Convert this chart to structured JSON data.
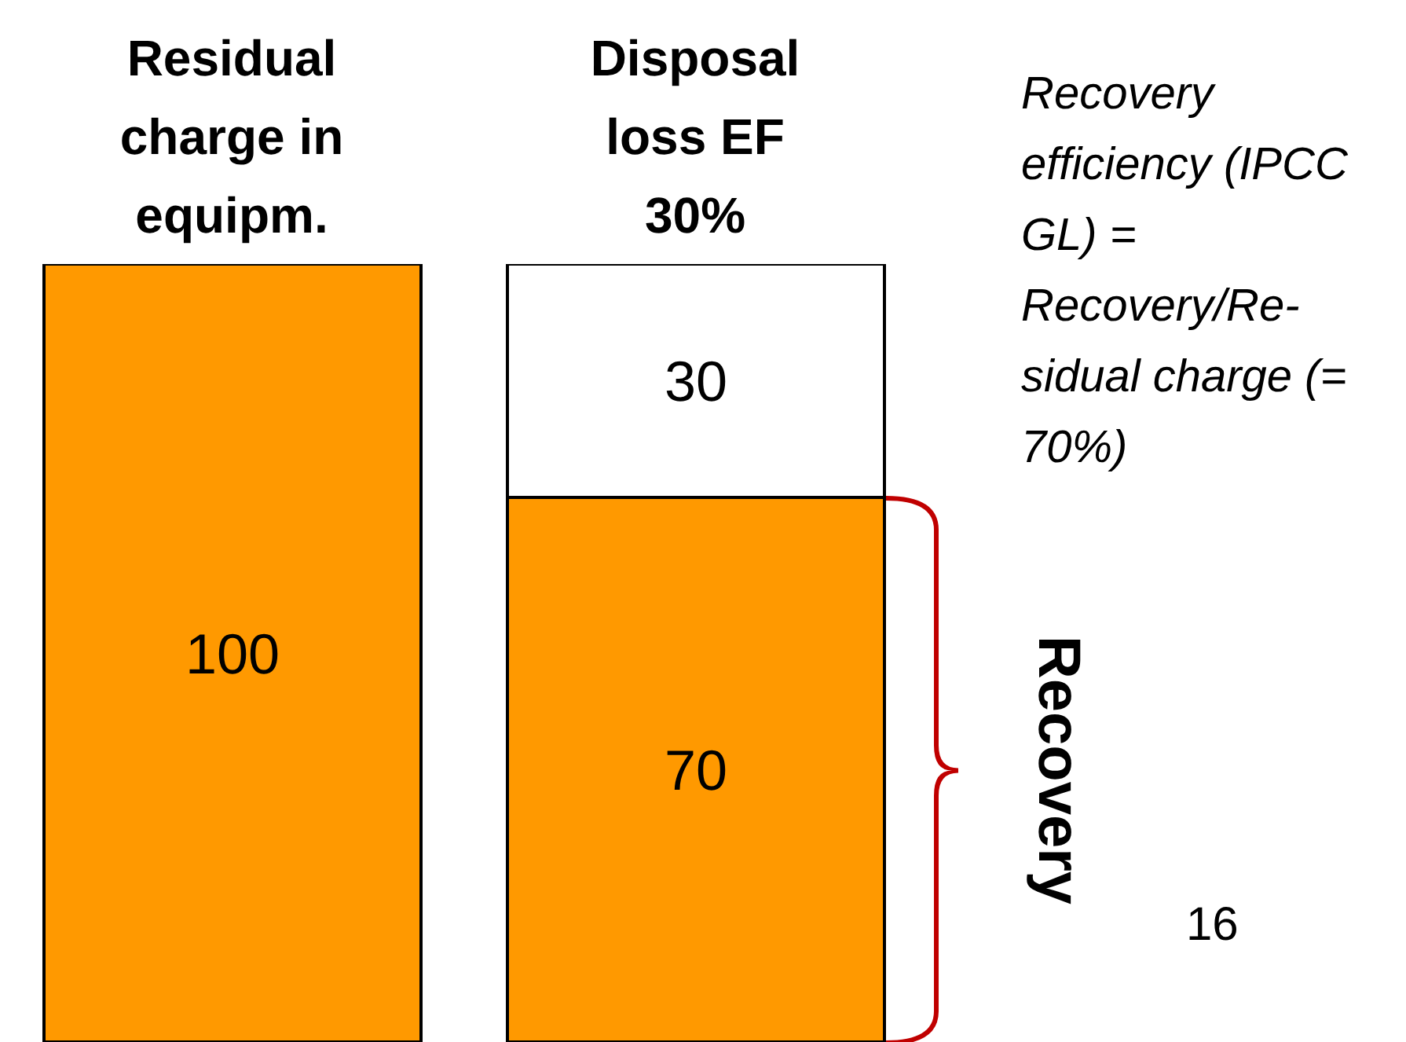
{
  "chart_data": {
    "type": "bar",
    "categories": [
      "Residual charge in equipm.",
      "Disposal loss EF 30%"
    ],
    "series": [
      {
        "color": "#ff9900",
        "values": [
          100,
          70
        ]
      },
      {
        "color": "#ffffff",
        "values": [
          null,
          30
        ]
      }
    ],
    "stacked": true,
    "data_labels": true,
    "ylim": [
      0,
      100
    ],
    "tick_labels": "x",
    "annotations": [
      "Recovery efficiency (IPCC GL) = Recovery/Re-sidual charge (= 70%)",
      "16",
      "Recovery"
    ]
  }
}
